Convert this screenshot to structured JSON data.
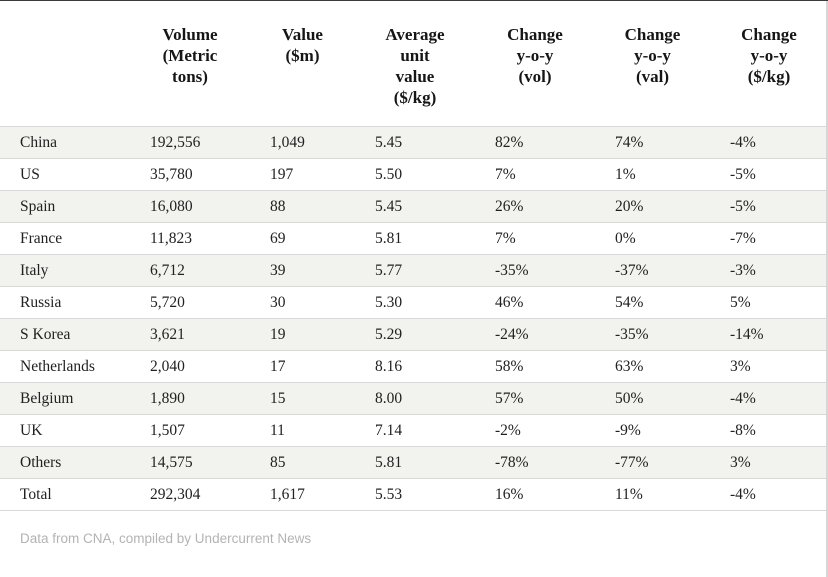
{
  "chart_data": {
    "type": "table",
    "columns": [
      "",
      "Volume (Metric tons)",
      "Value ($m)",
      "Average unit value ($/kg)",
      "Change y-o-y (vol)",
      "Change y-o-y (val)",
      "Change y-o-y ($/kg)"
    ],
    "rows": [
      [
        "China",
        "192,556",
        "1,049",
        "5.45",
        "82%",
        "74%",
        "-4%"
      ],
      [
        "US",
        "35,780",
        "197",
        "5.50",
        "7%",
        "1%",
        "-5%"
      ],
      [
        "Spain",
        "16,080",
        "88",
        "5.45",
        "26%",
        "20%",
        "-5%"
      ],
      [
        "France",
        "11,823",
        "69",
        "5.81",
        "7%",
        "0%",
        "-7%"
      ],
      [
        "Italy",
        "6,712",
        "39",
        "5.77",
        "-35%",
        "-37%",
        "-3%"
      ],
      [
        "Russia",
        "5,720",
        "30",
        "5.30",
        "46%",
        "54%",
        "5%"
      ],
      [
        "S Korea",
        "3,621",
        "19",
        "5.29",
        "-24%",
        "-35%",
        "-14%"
      ],
      [
        "Netherlands",
        "2,040",
        "17",
        "8.16",
        "58%",
        "63%",
        "3%"
      ],
      [
        "Belgium",
        "1,890",
        "15",
        "8.00",
        "57%",
        "50%",
        "-4%"
      ],
      [
        "UK",
        "1,507",
        "11",
        "7.14",
        "-2%",
        "-9%",
        "-8%"
      ],
      [
        "Others",
        "14,575",
        "85",
        "5.81",
        "-78%",
        "-77%",
        "3%"
      ],
      [
        "Total",
        "292,304",
        "1,617",
        "5.53",
        "16%",
        "11%",
        "-4%"
      ]
    ],
    "source": "Data from CNA, compiled by Undercurrent News"
  },
  "table": {
    "header_display": [
      "",
      "Volume\n(Metric\ntons)",
      "Value\n($m)",
      "Average\nunit\nvalue\n($/kg)",
      "Change\ny-o-y\n(vol)",
      "Change\ny-o-y\n(val)",
      "Change\ny-o-y\n($/kg)"
    ]
  },
  "footer": {
    "source_note": "Data from CNA, compiled by Undercurrent News"
  },
  "colors": {
    "stripe": "#f2f2ef",
    "row_border": "#d9d9d7",
    "header_text": "#161616",
    "body_text": "#212121",
    "footer_text": "#b3b3b3",
    "top_line": "#3a3a3a",
    "right_line": "#d6d6d6"
  }
}
